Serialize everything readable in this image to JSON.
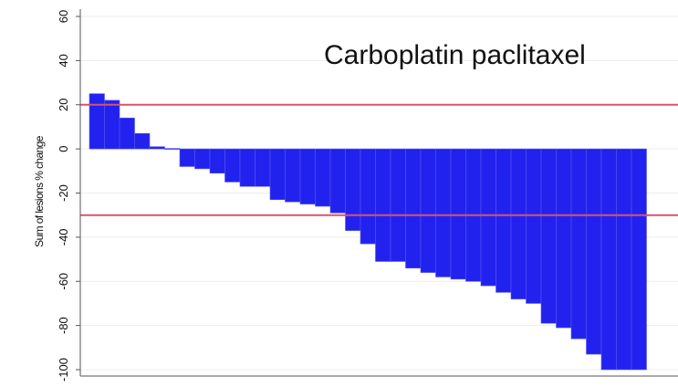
{
  "chart_data": {
    "type": "bar",
    "title": "Carboplatin paclitaxel",
    "xlabel": "",
    "ylabel": "Sum of lesions % change",
    "ylim": [
      -100,
      60
    ],
    "yticks": [
      60,
      40,
      20,
      0,
      -20,
      -40,
      -60,
      -80,
      -100
    ],
    "ytick_labels": [
      "60",
      "40",
      "20",
      "0",
      "-20",
      "-40",
      "-60",
      "-80",
      "-100"
    ],
    "reference_lines": [
      20,
      -30
    ],
    "grid": "horizontal",
    "bar_color": "#2222ee",
    "reference_line_color": "#d9536b",
    "series": [
      {
        "values": [
          25,
          22,
          14,
          7,
          1,
          0,
          -8,
          -9,
          -11,
          -15,
          -17,
          -17,
          -23,
          -24,
          -25,
          -26,
          -29,
          -37,
          -43,
          -51,
          -51,
          -54,
          -56,
          -58,
          -59,
          -60,
          -62,
          -65,
          -68,
          -70,
          -79,
          -81,
          -86,
          -93,
          -100,
          -100,
          -100
        ]
      }
    ]
  }
}
